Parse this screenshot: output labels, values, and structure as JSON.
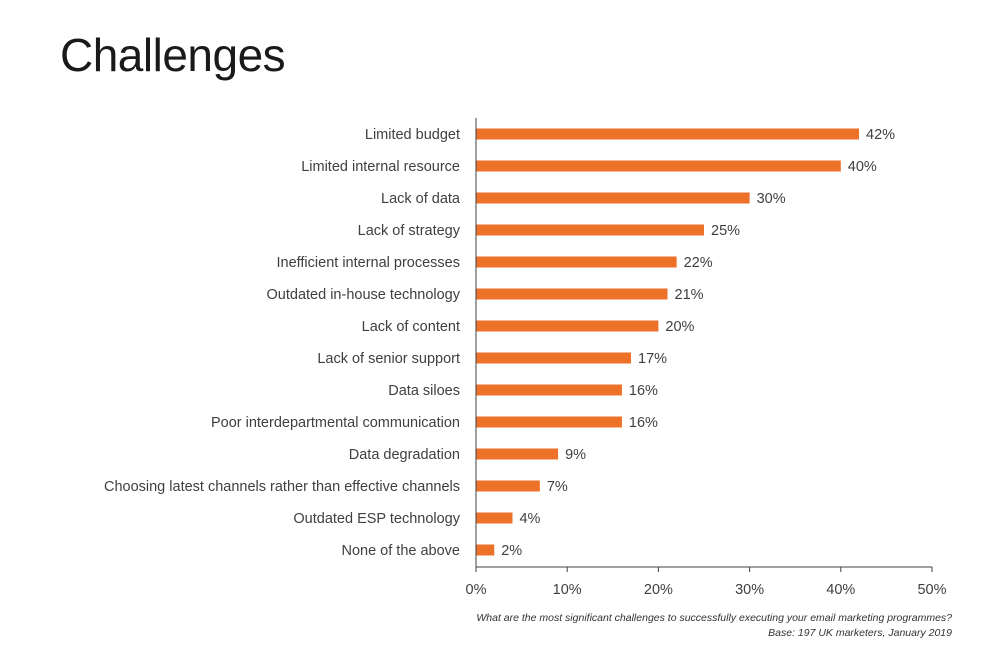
{
  "page": {
    "title": "Challenges"
  },
  "footnote": {
    "question": "What are the most significant challenges to successfully executing your email marketing programmes?",
    "base": "Base: 197 UK marketers, January 2019"
  },
  "chart_data": {
    "type": "bar",
    "orientation": "horizontal",
    "title": "",
    "xlabel": "",
    "ylabel": "",
    "categories": [
      "Limited budget",
      "Limited internal resource",
      "Lack of data",
      "Lack of strategy",
      "Inefficient internal processes",
      "Outdated in-house technology",
      "Lack of content",
      "Lack of senior support",
      "Data siloes",
      "Poor interdepartmental communication",
      "Data degradation",
      "Choosing latest channels rather than effective channels",
      "Outdated ESP technology",
      "None of the above"
    ],
    "values": [
      42,
      40,
      30,
      25,
      22,
      21,
      20,
      17,
      16,
      16,
      9,
      7,
      4,
      2
    ],
    "value_labels": [
      "42%",
      "40%",
      "30%",
      "25%",
      "22%",
      "21%",
      "20%",
      "17%",
      "16%",
      "16%",
      "9%",
      "7%",
      "4%",
      "2%"
    ],
    "xlim": [
      0,
      50
    ],
    "x_ticks": [
      0,
      10,
      20,
      30,
      40,
      50
    ],
    "x_tick_labels": [
      "0%",
      "10%",
      "20%",
      "30%",
      "40%",
      "50%"
    ],
    "grid": false,
    "legend": "none",
    "bar_color": "#ED7128"
  }
}
